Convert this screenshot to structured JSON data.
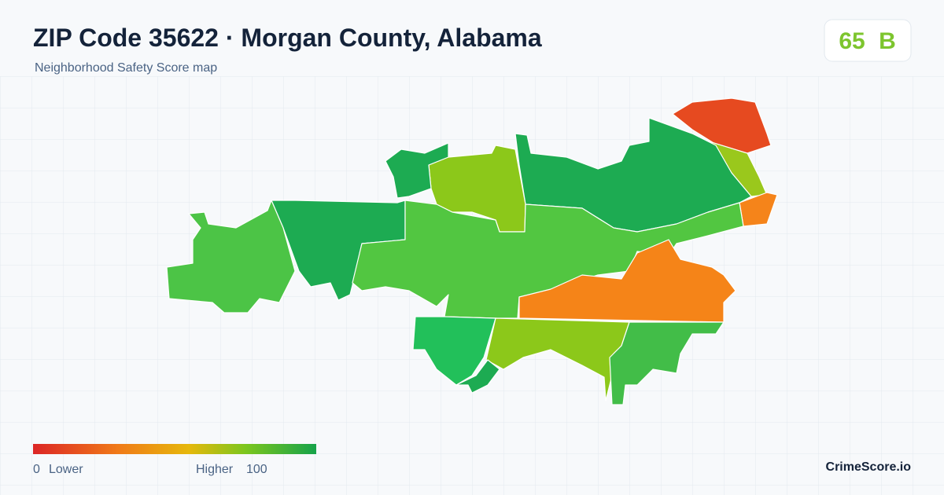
{
  "header": {
    "title": "ZIP Code 35622 · Morgan County, Alabama",
    "subtitle": "Neighborhood Safety Score map"
  },
  "score": {
    "value": 65,
    "grade": "B"
  },
  "legend": {
    "min": 0,
    "min_label": "Lower",
    "max_label": "Higher",
    "max": 100
  },
  "brand": "CrimeScore.io"
}
